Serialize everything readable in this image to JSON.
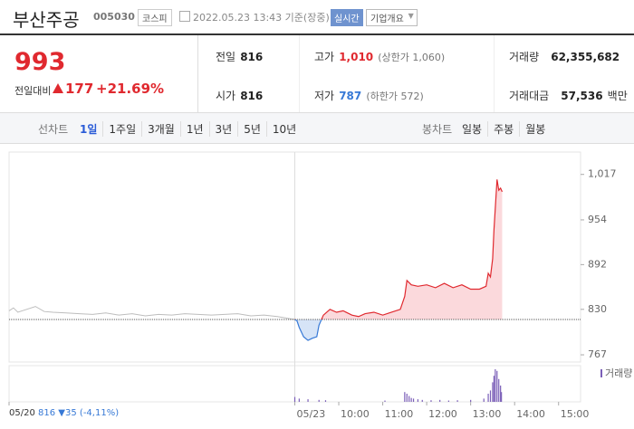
{
  "header": {
    "name": "부산주공",
    "code": "005030",
    "market": "코스피",
    "timestamp": "2022.05.23 13:43 기준(장중)",
    "realtime": "실시간",
    "company_info": "기업개요"
  },
  "quote": {
    "price": "993",
    "change_label": "전일대비",
    "change": "177",
    "change_rate": "+21.69%"
  },
  "stats": [
    {
      "label": "전일",
      "value": "816"
    },
    {
      "label": "고가",
      "value": "1,010",
      "note": "(상한가 1,060)"
    },
    {
      "label": "거래량",
      "value": "62,355,682"
    },
    {
      "label": "시가",
      "value": "816"
    },
    {
      "label": "저가",
      "value": "787",
      "note": "(하한가 572)"
    },
    {
      "label": "거래대금",
      "value": "57,536",
      "unit": "백만"
    }
  ],
  "tabs": {
    "line_label": "선차트",
    "line": [
      "1일",
      "1주일",
      "3개월",
      "1년",
      "3년",
      "5년",
      "10년"
    ],
    "selected_index": 0,
    "candle_label": "봉차트",
    "candle": [
      "일봉",
      "주봉",
      "월봉"
    ]
  },
  "footer": {
    "date": "05/20",
    "close": "816",
    "change": "35",
    "change_rate": "(-4,11%)"
  },
  "chart_data": {
    "type": "line",
    "xlim": [
      0,
      13
    ],
    "ylim": [
      757,
      1048
    ],
    "xticks": [
      {
        "value": 0,
        "label": "05/20"
      },
      {
        "value": 6.5,
        "label": "05/23"
      },
      {
        "value": 7.5,
        "label": "10:00"
      },
      {
        "value": 8.5,
        "label": "11:00"
      },
      {
        "value": 9.5,
        "label": "12:00"
      },
      {
        "value": 10.5,
        "label": "13:00"
      },
      {
        "value": 11.5,
        "label": "14:00"
      },
      {
        "value": 12.5,
        "label": "15:00"
      }
    ],
    "yticks": [
      767,
      830,
      892,
      954,
      {
        "value": 1017,
        "label": "1,017"
      }
    ],
    "baseline": 816,
    "series": [
      {
        "color": "#bdbdbd",
        "x": [
          0,
          0.1,
          0.2,
          0.4,
          0.6,
          0.8,
          1.0,
          1.3,
          1.6,
          1.9,
          2.2,
          2.5,
          2.8,
          3.1,
          3.4,
          3.7,
          4.0,
          4.3,
          4.6,
          4.9,
          5.2,
          5.5,
          5.8,
          6.1,
          6.3,
          6.5
        ],
        "values": [
          828,
          832,
          826,
          830,
          834,
          827,
          826,
          825,
          824,
          823,
          825,
          822,
          824,
          821,
          823,
          822,
          824,
          823,
          822,
          823,
          824,
          821,
          822,
          820,
          818,
          816
        ]
      },
      {
        "color": "#e0292f",
        "down_color": "#3779d6",
        "fill": "#fbd9dc",
        "down_fill": "#d6e4f7",
        "x": [
          6.5,
          6.55,
          6.6,
          6.7,
          6.8,
          6.9,
          7.0,
          7.05,
          7.15,
          7.3,
          7.45,
          7.6,
          7.8,
          7.95,
          8.1,
          8.3,
          8.5,
          8.7,
          8.9,
          9.0,
          9.05,
          9.15,
          9.3,
          9.5,
          9.7,
          9.9,
          10.1,
          10.3,
          10.5,
          10.7,
          10.85,
          10.9,
          10.95,
          11.0,
          11.03,
          11.06,
          11.1,
          11.14,
          11.18,
          11.217
        ],
        "values": [
          816,
          814,
          805,
          792,
          787,
          790,
          792,
          808,
          822,
          830,
          826,
          828,
          822,
          820,
          824,
          826,
          822,
          826,
          830,
          848,
          870,
          864,
          862,
          864,
          860,
          866,
          860,
          864,
          858,
          858,
          862,
          880,
          875,
          900,
          940,
          970,
          1010,
          995,
          998,
          993
        ]
      }
    ],
    "volume": {
      "label": "거래량",
      "color": "#7b5fb8",
      "ylim": [
        0,
        100
      ],
      "x": [
        6.5,
        6.6,
        6.8,
        7.05,
        7.2,
        8.55,
        9.0,
        9.05,
        9.1,
        9.15,
        9.2,
        9.3,
        9.4,
        9.6,
        9.8,
        10.0,
        10.2,
        10.5,
        10.8,
        10.9,
        10.95,
        11.0,
        11.03,
        11.06,
        11.1,
        11.14,
        11.18,
        11.2
      ],
      "values": [
        15,
        10,
        8,
        6,
        5,
        4,
        30,
        25,
        18,
        12,
        10,
        8,
        6,
        5,
        6,
        4,
        5,
        6,
        10,
        25,
        35,
        60,
        80,
        100,
        95,
        70,
        50,
        30
      ]
    }
  }
}
